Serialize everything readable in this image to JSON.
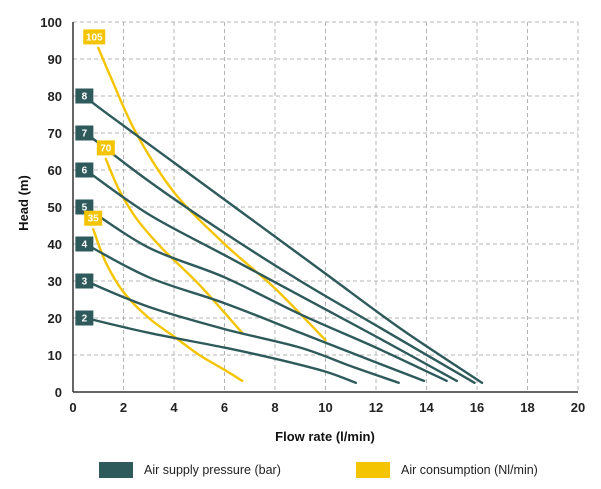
{
  "chart_data": {
    "type": "line",
    "xlabel": "Flow rate (l/min)",
    "ylabel": "Head (m)",
    "xlim": [
      0,
      20
    ],
    "ylim": [
      0,
      100
    ],
    "xticks": [
      "0",
      "2",
      "4",
      "6",
      "8",
      "10",
      "12",
      "14",
      "16",
      "18",
      "20"
    ],
    "yticks": [
      "0",
      "10",
      "20",
      "30",
      "40",
      "50",
      "60",
      "70",
      "80",
      "90",
      "100"
    ],
    "grid": true,
    "legend_position": "bottom",
    "colors": {
      "pressure": "#2e5a5c",
      "consumption": "#f5c400"
    },
    "legend": [
      {
        "name": "Air supply pressure (bar)",
        "color": "#2e5a5c"
      },
      {
        "name": "Air consumption (Nl/min)",
        "color": "#f5c400"
      }
    ],
    "pressure_series": [
      {
        "label": "2",
        "points": [
          [
            0.5,
            20
          ],
          [
            3,
            16
          ],
          [
            6,
            12
          ],
          [
            8,
            9
          ],
          [
            10,
            5.5
          ],
          [
            11.2,
            2.5
          ]
        ]
      },
      {
        "label": "3",
        "points": [
          [
            0.5,
            30
          ],
          [
            3,
            23
          ],
          [
            6,
            17
          ],
          [
            9,
            12
          ],
          [
            11,
            7
          ],
          [
            12.9,
            2.5
          ]
        ]
      },
      {
        "label": "4",
        "points": [
          [
            0.5,
            40
          ],
          [
            3,
            31
          ],
          [
            6,
            24
          ],
          [
            9,
            16
          ],
          [
            12,
            8
          ],
          [
            13.9,
            3
          ]
        ]
      },
      {
        "label": "5",
        "points": [
          [
            0.5,
            50
          ],
          [
            3,
            39
          ],
          [
            6,
            31
          ],
          [
            9,
            21
          ],
          [
            12,
            12
          ],
          [
            14.8,
            3
          ]
        ]
      },
      {
        "label": "6",
        "points": [
          [
            0.5,
            60
          ],
          [
            3,
            48
          ],
          [
            6,
            37
          ],
          [
            9,
            26
          ],
          [
            12,
            15
          ],
          [
            15.2,
            3
          ]
        ]
      },
      {
        "label": "7",
        "points": [
          [
            0.5,
            70
          ],
          [
            3,
            57
          ],
          [
            6,
            43
          ],
          [
            9,
            30
          ],
          [
            12,
            18
          ],
          [
            15.9,
            2.5
          ]
        ]
      },
      {
        "label": "8",
        "points": [
          [
            0.5,
            80
          ],
          [
            1,
            77
          ],
          [
            4,
            62
          ],
          [
            7,
            47
          ],
          [
            10,
            32
          ],
          [
            13,
            17
          ],
          [
            16.2,
            2.5
          ]
        ]
      }
    ],
    "consumption_series": [
      {
        "label": "35",
        "points": [
          [
            0.8,
            44
          ],
          [
            1.3,
            35
          ],
          [
            2,
            27
          ],
          [
            3,
            20
          ],
          [
            4,
            15
          ],
          [
            5,
            10
          ],
          [
            6,
            6
          ],
          [
            6.7,
            3
          ]
        ]
      },
      {
        "label": "70",
        "points": [
          [
            1.3,
            63
          ],
          [
            1.8,
            55
          ],
          [
            2.5,
            47
          ],
          [
            3.5,
            39
          ],
          [
            5,
            29
          ],
          [
            6.7,
            16
          ]
        ]
      },
      {
        "label": "105",
        "points": [
          [
            1,
            93
          ],
          [
            1.5,
            85
          ],
          [
            2.5,
            70
          ],
          [
            4,
            54
          ],
          [
            6,
            40
          ],
          [
            8,
            28
          ],
          [
            10,
            14
          ]
        ]
      }
    ]
  }
}
